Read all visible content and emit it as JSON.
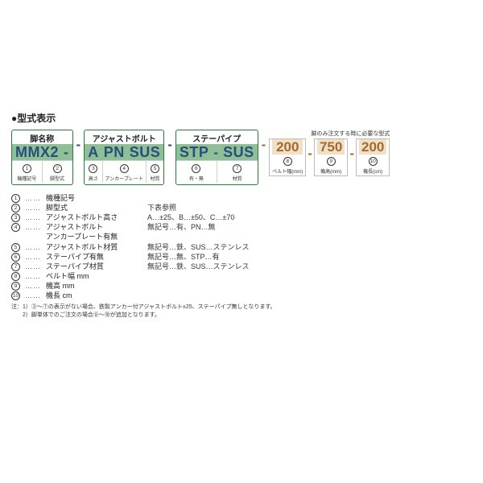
{
  "title": "●型式表示",
  "groups": [
    {
      "header": "脚名称",
      "codes": [
        "MMX2"
      ],
      "dashAfter": true,
      "cols": [
        {
          "n": "1",
          "label": "機種記号"
        },
        {
          "n": "2",
          "label": "脚型式"
        }
      ]
    },
    {
      "header": "アジャストボルト",
      "codes": [
        "A",
        "PN",
        "SUS"
      ],
      "dashAfter": false,
      "cols": [
        {
          "n": "3",
          "label": "高さ"
        },
        {
          "n": "4",
          "label": "アンカープレート"
        },
        {
          "n": "5",
          "label": "材質"
        }
      ]
    },
    {
      "header": "ステーパイプ",
      "codes": [
        "STP",
        "SUS"
      ],
      "dashAfter": false,
      "dashInside": true,
      "cols": [
        {
          "n": "6",
          "label": "有・無"
        },
        {
          "n": "7",
          "label": "材質"
        }
      ]
    }
  ],
  "extraHeader": "脚のみ注文する時に必要な型式",
  "extras": [
    {
      "num": "200",
      "n": "8",
      "label": "ベルト幅(mm)"
    },
    {
      "num": "750",
      "n": "9",
      "label": "機高(mm)"
    },
    {
      "num": "200",
      "n": "10",
      "label": "機長(cm)"
    }
  ],
  "legend": [
    {
      "n": "1",
      "term": "機種記号",
      "val": ""
    },
    {
      "n": "2",
      "term": "脚型式",
      "val": "下表参照"
    },
    {
      "n": "3",
      "term": "アジャストボルト高さ",
      "val": "A…±25、B…±50、C…±70"
    },
    {
      "n": "4",
      "term": "アジャストボルト\nアンカープレート有無",
      "val": "無記号…有、PN…無"
    },
    {
      "n": "5",
      "term": "アジャストボルト材質",
      "val": "無記号…鉄、SUS…ステンレス"
    },
    {
      "n": "6",
      "term": "ステーパイプ有無",
      "val": "無記号…無、STP…有"
    },
    {
      "n": "7",
      "term": "ステーパイプ材質",
      "val": "無記号…鉄、SUS…ステンレス"
    },
    {
      "n": "8",
      "term": "ベルト幅 mm",
      "val": ""
    },
    {
      "n": "9",
      "term": "機高 mm",
      "val": ""
    },
    {
      "n": "10",
      "term": "機長 cm",
      "val": ""
    }
  ],
  "notes": [
    "注：1）③〜⑦の表示がない場合、鉄製アンカー付アジャストボルト±25、ステーパイプ無しとなります。",
    "　　2）脚単体でのご注文の場合⑧〜⑩が追加となります。"
  ],
  "colors": {
    "groupBorder": "#2a7a3a",
    "strip": "#8fbf96",
    "code": "#294e7b",
    "extraBg": "#f1e0c6",
    "extraCode": "#a36a2e"
  }
}
